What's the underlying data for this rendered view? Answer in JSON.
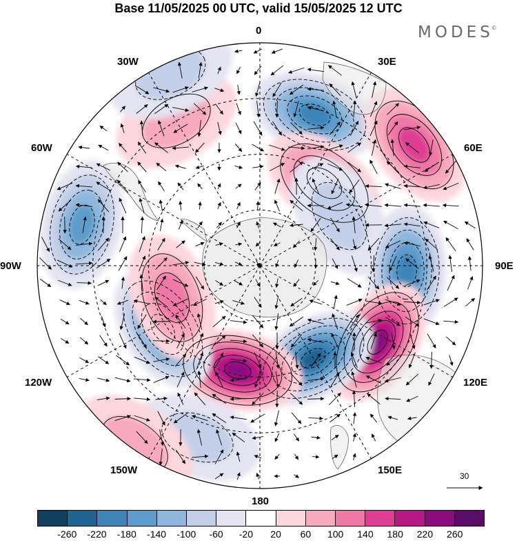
{
  "title": "Base 11/05/2025 00 UTC, valid 15/05/2025 12 UTC",
  "logo": "MODES",
  "logo_mark": "©",
  "longitude_labels": {
    "lon_0": "0",
    "lon_30e": "30E",
    "lon_60e": "60E",
    "lon_90e": "90E",
    "lon_120e": "120E",
    "lon_150e": "150E",
    "lon_180": "180",
    "lon_150w": "150W",
    "lon_120w": "120W",
    "lon_90w": "90W",
    "lon_60w": "60W",
    "lon_30w": "30W"
  },
  "reference_vector_label": "30",
  "colorbar": {
    "tick_labels": [
      "-260",
      "-220",
      "-180",
      "-140",
      "-100",
      "-60",
      "-20",
      "20",
      "60",
      "100",
      "140",
      "180",
      "220",
      "260"
    ],
    "colors": [
      "#10405e",
      "#1f6491",
      "#3e84b8",
      "#5d9ccb",
      "#8fb7dd",
      "#c3cfe8",
      "#e4e4f2",
      "#ffffff",
      "#fcd7de",
      "#f7a9bd",
      "#ef79a6",
      "#de3e93",
      "#b51987",
      "#8a0c7f",
      "#5b0b68"
    ]
  },
  "anomaly_features": [
    {
      "kind": "negative",
      "value": -180,
      "lon": 20,
      "colat": 0.72
    },
    {
      "kind": "positive",
      "value": 140,
      "lon": 52,
      "colat": 0.88
    },
    {
      "kind": "positive",
      "value": 140,
      "lon": 38,
      "colat": 0.47
    },
    {
      "kind": "negative",
      "value": -60,
      "lon": 58,
      "colat": 0.42
    },
    {
      "kind": "negative",
      "value": -180,
      "lon": 92,
      "colat": 0.66
    },
    {
      "kind": "positive",
      "value": 220,
      "lon": 123,
      "colat": 0.63
    },
    {
      "kind": "negative",
      "value": -220,
      "lon": 150,
      "colat": 0.48
    },
    {
      "kind": "positive",
      "value": 220,
      "lon": -168,
      "colat": 0.48
    },
    {
      "kind": "negative",
      "value": -180,
      "lon": -123,
      "colat": 0.52
    },
    {
      "kind": "negative",
      "value": -140,
      "lon": -77,
      "colat": 0.82
    },
    {
      "kind": "positive",
      "value": 100,
      "lon": -110,
      "colat": 0.42
    },
    {
      "kind": "negative",
      "value": -60,
      "lon": -160,
      "colat": 0.82
    },
    {
      "kind": "positive",
      "value": 60,
      "lon": -145,
      "colat": 0.98
    },
    {
      "kind": "positive",
      "value": 60,
      "lon": -30,
      "colat": 0.75
    },
    {
      "kind": "negative",
      "value": -60,
      "lon": -25,
      "colat": 0.95
    }
  ]
}
